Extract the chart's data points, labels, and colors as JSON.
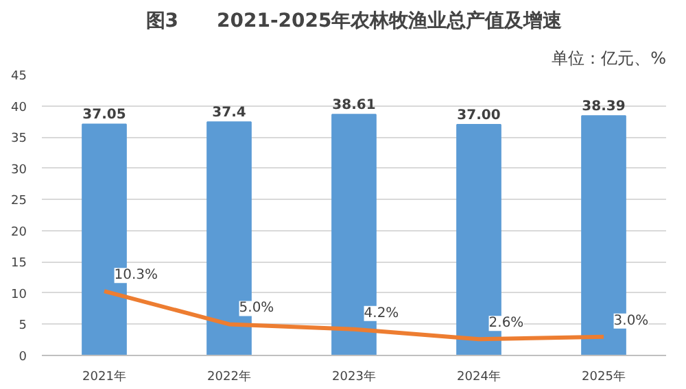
{
  "chart_data": {
    "type": "bar",
    "title": "图3　　2021-2025年农林牧渔业总产值及增速",
    "subtitle": "单位：亿元、%",
    "categories": [
      "2021年",
      "2022年",
      "2023年",
      "2024年",
      "2025年"
    ],
    "series": [
      {
        "color": "#5b9bd5",
        "values": [
          37.05,
          37.4,
          38.61,
          37.0,
          38.39
        ],
        "value_labels": [
          "37.05",
          "37.4",
          "38.61",
          "37.00",
          "38.39"
        ]
      },
      {
        "type": "line",
        "color": "#ed7d31",
        "values": [
          10.3,
          5.0,
          4.2,
          2.6,
          3.0
        ],
        "value_labels": [
          "10.3%",
          "5.0%",
          "4.2%",
          "2.6%",
          "3.0%"
        ]
      }
    ],
    "ylim": [
      0,
      45
    ],
    "yticks": [
      0,
      5,
      10,
      15,
      20,
      25,
      30,
      35,
      40,
      45
    ],
    "grid": "y",
    "marker": "none",
    "line_style": "solid"
  }
}
